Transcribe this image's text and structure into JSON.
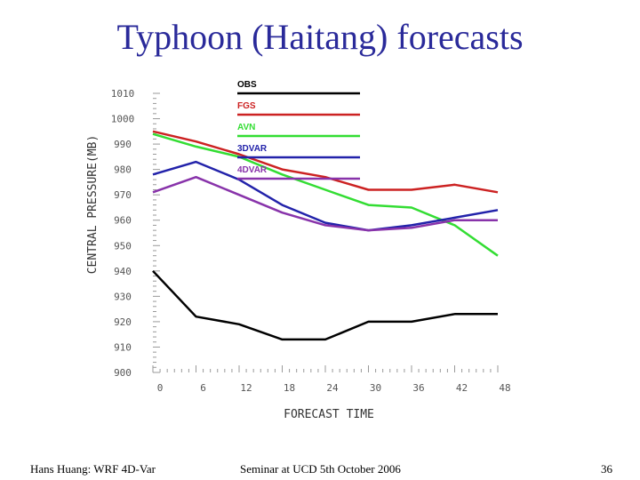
{
  "slide": {
    "title": "Typhoon (Haitang) forecasts",
    "footer_left": "Hans Huang: WRF 4D-Var",
    "footer_center": "Seminar at UCD 5th October 2006",
    "page_number": "36"
  },
  "chart_data": {
    "type": "line",
    "title": "",
    "xlabel": "FORECAST TIME",
    "ylabel": "CENTRAL PRESSURE(MB)",
    "x": [
      0,
      6,
      12,
      18,
      24,
      30,
      36,
      42,
      48
    ],
    "x_tick_labels": [
      "0",
      "6",
      "12",
      "18",
      "24",
      "30",
      "36",
      "42",
      "48"
    ],
    "ylim": [
      900,
      1010
    ],
    "y_ticks": [
      900,
      910,
      920,
      930,
      940,
      950,
      960,
      970,
      980,
      990,
      1000,
      1010
    ],
    "grid": false,
    "legend_placement": "top",
    "series": [
      {
        "name": "OBS",
        "color": "#000000",
        "x": [
          0,
          6,
          12,
          18,
          24,
          30,
          36,
          42,
          48
        ],
        "values": [
          940,
          922,
          919,
          913,
          913,
          920,
          920,
          923,
          923
        ]
      },
      {
        "name": "FGS",
        "color": "#cc2222",
        "x": [
          0,
          6,
          12,
          18,
          24,
          30,
          36,
          42,
          48
        ],
        "values": [
          995,
          991,
          986,
          980,
          977,
          972,
          972,
          974,
          971
        ]
      },
      {
        "name": "AVN",
        "color": "#33dd33",
        "x": [
          0,
          6,
          12,
          18,
          24,
          30,
          36,
          42,
          48
        ],
        "values": [
          994,
          989,
          985,
          978,
          972,
          966,
          965,
          958,
          946
        ]
      },
      {
        "name": "3DVAR",
        "color": "#2222aa",
        "x": [
          0,
          6,
          12,
          18,
          24,
          30,
          36,
          42,
          48
        ],
        "values": [
          978,
          983,
          976,
          966,
          959,
          956,
          958,
          961,
          964
        ]
      },
      {
        "name": "4DVAR",
        "color": "#8833aa",
        "x": [
          0,
          6,
          12,
          18,
          24,
          30,
          36,
          42,
          48
        ],
        "values": [
          971,
          977,
          970,
          963,
          958,
          956,
          957,
          960,
          960
        ]
      }
    ]
  }
}
